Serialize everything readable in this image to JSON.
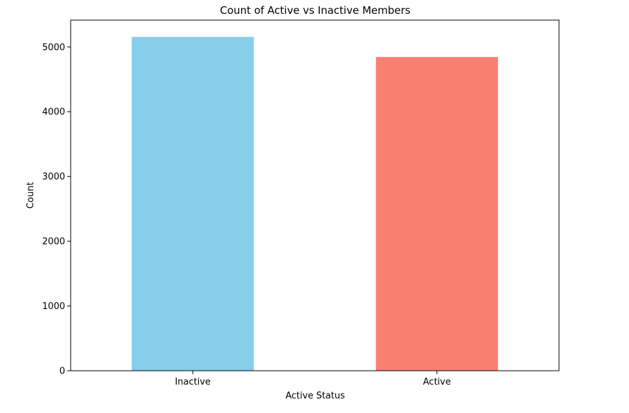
{
  "chart_data": {
    "type": "bar",
    "title": "Count of Active vs Inactive Members",
    "xlabel": "Active Status",
    "ylabel": "Count",
    "categories": [
      "Inactive",
      "Active"
    ],
    "values": [
      5155,
      4845
    ],
    "colors": [
      "#87ceeb",
      "#fa8072"
    ],
    "ylim": [
      0,
      5415
    ],
    "yticks": [
      0,
      1000,
      2000,
      3000,
      4000,
      5000
    ],
    "ytick_labels": [
      "0",
      "1000",
      "2000",
      "3000",
      "4000",
      "5000"
    ],
    "grid": false,
    "legend": "none"
  }
}
